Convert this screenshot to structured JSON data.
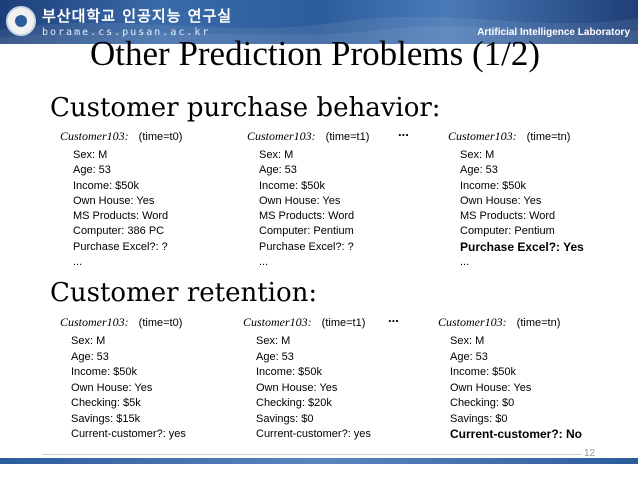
{
  "banner": {
    "university": "부산대학교 인공지능 연구실",
    "url": "borame.cs.pusan.ac.kr",
    "lab": "Artificial Intelligence Laboratory"
  },
  "title": "Other Prediction Problems (1/2)",
  "purchase": {
    "heading": "Customer purchase behavior:",
    "dots": "...",
    "columns": [
      {
        "id": "Customer103:",
        "time": "(time=t0)",
        "attributes": [
          "Sex: M",
          "Age: 53",
          "Income: $50k",
          "Own House: Yes",
          "MS Products: Word",
          "Computer: 386 PC",
          "Purchase Excel?: ?",
          "..."
        ]
      },
      {
        "id": "Customer103:",
        "time": "(time=t1)",
        "attributes": [
          "Sex: M",
          "Age: 53",
          "Income: $50k",
          "Own House: Yes",
          "MS Products: Word",
          "Computer: Pentium",
          "Purchase Excel?: ?",
          "..."
        ]
      },
      {
        "id": "Customer103:",
        "time": "(time=tn)",
        "attributes": [
          "Sex: M",
          "Age: 53",
          "Income: $50k",
          "Own House: Yes",
          "MS Products: Word",
          "Computer: Pentium",
          "Purchase Excel?: Yes",
          "..."
        ]
      }
    ]
  },
  "retention": {
    "heading": "Customer retention:",
    "dots": "...",
    "columns": [
      {
        "id": "Customer103:",
        "time": "(time=t0)",
        "attributes": [
          "Sex: M",
          "Age: 53",
          "Income: $50k",
          "Own House: Yes",
          "Checking: $5k",
          "Savings: $15k",
          "Current-customer?: yes"
        ]
      },
      {
        "id": "Customer103:",
        "time": "(time=t1)",
        "attributes": [
          "Sex: M",
          "Age: 53",
          "Income: $50k",
          "Own House: Yes",
          "Checking: $20k",
          "Savings: $0",
          "Current-customer?: yes"
        ]
      },
      {
        "id": "Customer103:",
        "time": "(time=tn)",
        "attributes": [
          "Sex: M",
          "Age: 53",
          "Income: $50k",
          "Own House: Yes",
          "Checking: $0",
          "Savings: $0",
          "Current-customer?:  No"
        ]
      }
    ]
  },
  "page_number": "12"
}
